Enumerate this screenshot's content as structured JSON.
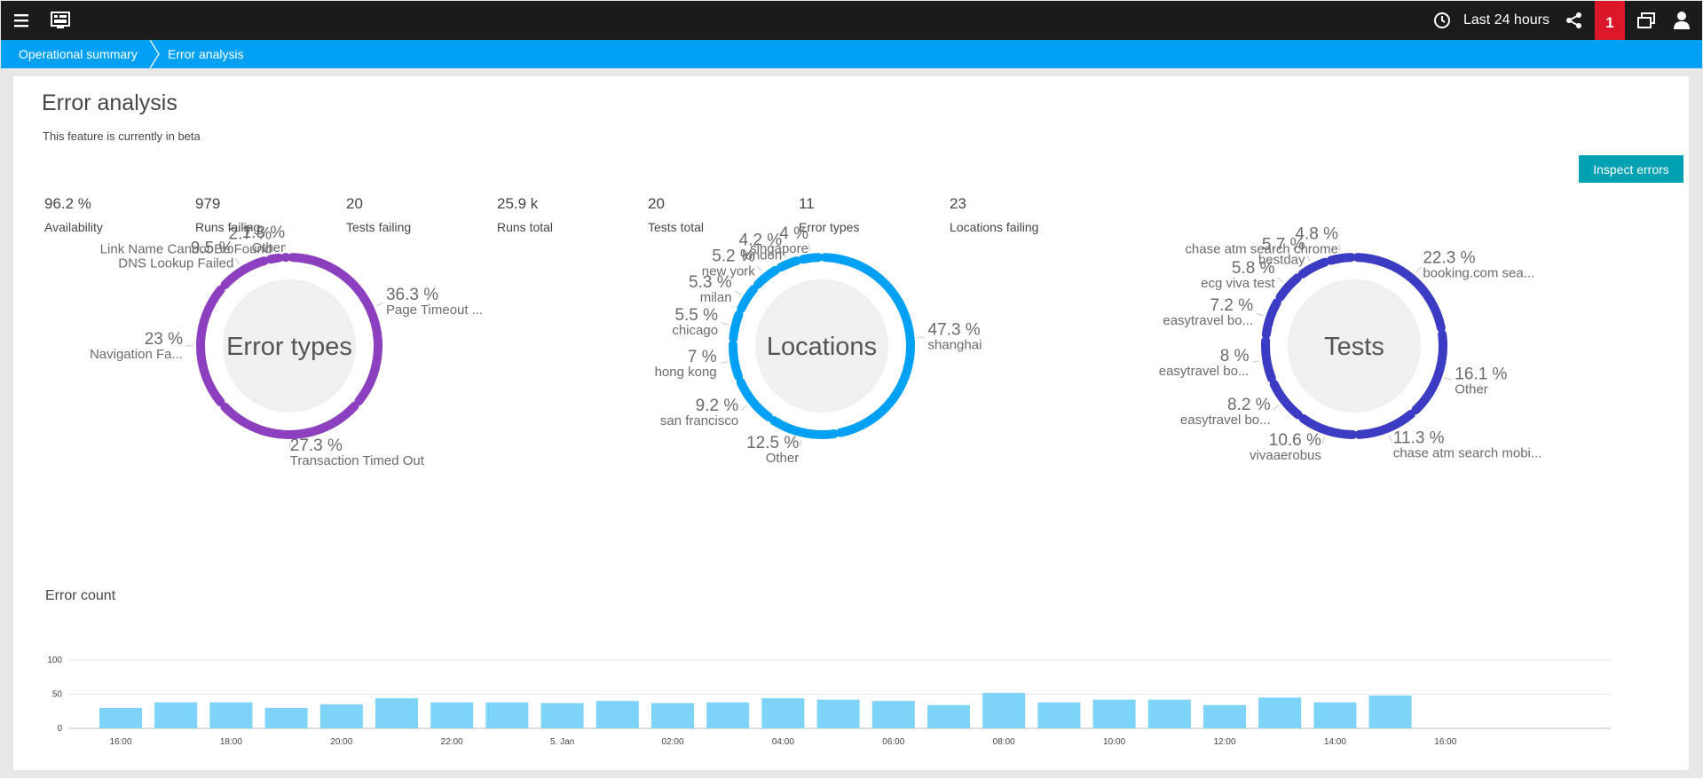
{
  "topbar": {
    "timeframe": "Last 24 hours",
    "problems_count": "1",
    "icons": [
      "menu-icon",
      "dashboard-icon",
      "clock-icon",
      "share-icon",
      "windows-icon",
      "user-icon"
    ]
  },
  "breadcrumb": [
    "Operational summary",
    "Error analysis"
  ],
  "page": {
    "title": "Error analysis",
    "subtitle": "This feature is currently in beta",
    "inspect_label": "Inspect errors"
  },
  "metrics": [
    {
      "value": "96.2 %",
      "label": "Availability"
    },
    {
      "value": "979",
      "label": "Runs failing"
    },
    {
      "value": "20",
      "label": "Tests failing"
    },
    {
      "value": "25.9 k",
      "label": "Runs total"
    },
    {
      "value": "20",
      "label": "Tests total"
    },
    {
      "value": "11",
      "label": "Error types"
    },
    {
      "value": "23",
      "label": "Locations failing"
    }
  ],
  "donuts": [
    {
      "center": "Error types",
      "color": "#8c3fbf",
      "slices": [
        {
          "pct": "36.3 %",
          "name": "Page Timeout ...",
          "value": 36.3
        },
        {
          "pct": "27.3 %",
          "name": "Transaction Timed Out",
          "value": 27.3
        },
        {
          "pct": "23 %",
          "name": "Navigation Fa...",
          "value": 23
        },
        {
          "pct": "9.5 %",
          "name": "DNS Lookup Failed",
          "value": 9.5
        },
        {
          "pct": "2.7 %",
          "name": "Link Name Cannot Be Found",
          "value": 2.7
        },
        {
          "pct": "1.3 %",
          "name": "Other",
          "value": 1.3
        }
      ]
    },
    {
      "center": "Locations",
      "color": "#00a1f4",
      "slices": [
        {
          "pct": "47.3 %",
          "name": "shanghai",
          "value": 47.3
        },
        {
          "pct": "12.5 %",
          "name": "Other",
          "value": 12.5
        },
        {
          "pct": "9.2 %",
          "name": "san francisco",
          "value": 9.2
        },
        {
          "pct": "7 %",
          "name": "hong kong",
          "value": 7
        },
        {
          "pct": "5.5 %",
          "name": "chicago",
          "value": 5.5
        },
        {
          "pct": "5.3 %",
          "name": "milan",
          "value": 5.3
        },
        {
          "pct": "5.2 %",
          "name": "new york",
          "value": 5.2
        },
        {
          "pct": "4.2 %",
          "name": "london",
          "value": 4.2
        },
        {
          "pct": "4 %",
          "name": "singapore",
          "value": 4
        }
      ]
    },
    {
      "center": "Tests",
      "color": "#3b3bc4",
      "slices": [
        {
          "pct": "22.3 %",
          "name": "booking.com sea...",
          "value": 22.3
        },
        {
          "pct": "16.1 %",
          "name": "Other",
          "value": 16.1
        },
        {
          "pct": "11.3 %",
          "name": "chase atm search mobi...",
          "value": 11.3
        },
        {
          "pct": "10.6 %",
          "name": "vivaaerobus",
          "value": 10.6
        },
        {
          "pct": "8.2 %",
          "name": "easytravel bo...",
          "value": 8.2
        },
        {
          "pct": "8 %",
          "name": "easytravel bo...",
          "value": 8
        },
        {
          "pct": "7.2 %",
          "name": "easytravel bo...",
          "value": 7.2
        },
        {
          "pct": "5.8 %",
          "name": "ecg viva test",
          "value": 5.8
        },
        {
          "pct": "5.7 %",
          "name": "bestday",
          "value": 5.7
        },
        {
          "pct": "4.8 %",
          "name": "chase atm search chrome",
          "value": 4.8
        }
      ]
    }
  ],
  "error_count": {
    "title": "Error count"
  },
  "chart_data": {
    "type": "bar",
    "title": "Error count",
    "color": "#7dd4f8",
    "yticks": [
      "100",
      "50",
      "0"
    ],
    "ylim": [
      0,
      100
    ],
    "xticks": [
      "16:00",
      "18:00",
      "20:00",
      "22:00",
      "5. Jan",
      "02:00",
      "04:00",
      "06:00",
      "08:00",
      "10:00",
      "12:00",
      "14:00",
      "16:00"
    ],
    "categories": [
      "16:00",
      "17:00",
      "18:00",
      "19:00",
      "20:00",
      "21:00",
      "22:00",
      "23:00",
      "00:00",
      "01:00",
      "02:00",
      "03:00",
      "04:00",
      "05:00",
      "06:00",
      "07:00",
      "08:00",
      "09:00",
      "10:00",
      "11:00",
      "12:00",
      "13:00",
      "14:00",
      "15:00"
    ],
    "values": [
      30,
      38,
      38,
      30,
      35,
      44,
      38,
      38,
      37,
      40,
      37,
      38,
      44,
      42,
      40,
      34,
      52,
      38,
      42,
      42,
      34,
      45,
      38,
      48
    ]
  }
}
